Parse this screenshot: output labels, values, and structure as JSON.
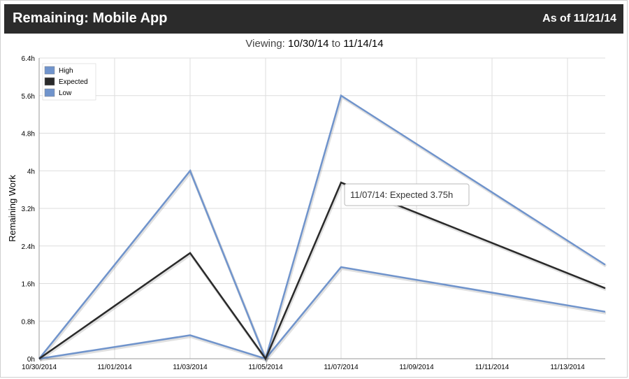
{
  "header": {
    "title": "Remaining: Mobile App",
    "as_of": "As of 11/21/14"
  },
  "viewing": {
    "label": "Viewing:",
    "from": "10/30/14",
    "to_word": "to",
    "to": "11/14/14"
  },
  "tooltip": {
    "text": "11/07/14: Expected 3.75h",
    "date": "2014-11-07",
    "value": 3.75
  },
  "colors": {
    "high": "#7094cc",
    "expected": "#2a2a2a",
    "low": "#7094cc",
    "header_bg": "#2b2b2b"
  },
  "chart_data": {
    "type": "line",
    "title": "",
    "xlabel": "",
    "ylabel": "Remaining Work",
    "xlim": [
      "2014-10-30",
      "2014-11-14"
    ],
    "ylim": [
      0,
      6.4
    ],
    "x_ticks": [
      "2014-10-30",
      "2014-11-01",
      "2014-11-03",
      "2014-11-05",
      "2014-11-07",
      "2014-11-09",
      "2014-11-11",
      "2014-11-13"
    ],
    "x_tick_labels": [
      "10/30/2014",
      "11/01/2014",
      "11/03/2014",
      "11/05/2014",
      "11/07/2014",
      "11/09/2014",
      "11/11/2014",
      "11/13/2014"
    ],
    "y_ticks": [
      0,
      0.8,
      1.6,
      2.4,
      3.2,
      4,
      4.8,
      5.6,
      6.4
    ],
    "y_tick_labels": [
      "0h",
      "0.8h",
      "1.6h",
      "2.4h",
      "3.2h",
      "4h",
      "4.8h",
      "5.6h",
      "6.4h"
    ],
    "grid": true,
    "legend": "top-left",
    "x": [
      "2014-10-30",
      "2014-11-03",
      "2014-11-05",
      "2014-11-07",
      "2014-11-14"
    ],
    "series": [
      {
        "name": "High",
        "color": "#7094cc",
        "values": [
          0,
          4.0,
          0,
          5.6,
          2.0
        ]
      },
      {
        "name": "Expected",
        "color": "#2a2a2a",
        "values": [
          0,
          2.25,
          0,
          3.75,
          1.5
        ]
      },
      {
        "name": "Low",
        "color": "#7094cc",
        "values": [
          0,
          0.5,
          0,
          1.95,
          1.0
        ]
      }
    ]
  }
}
